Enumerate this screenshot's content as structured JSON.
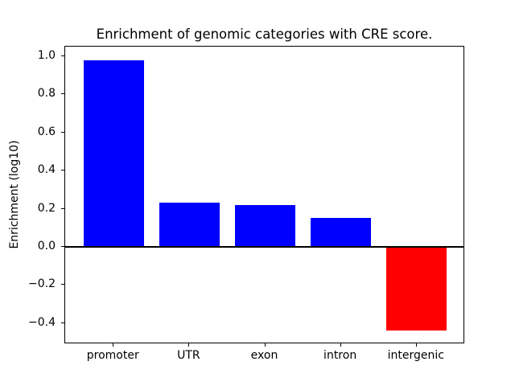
{
  "figure": {
    "background": "#ffffff",
    "title": "Enrichment of genomic categories with CRE score."
  },
  "chart_data": {
    "type": "bar",
    "title": "Enrichment of genomic categories with CRE score.",
    "xlabel": "",
    "ylabel": "Enrichment (log10)",
    "categories": [
      "promoter",
      "UTR",
      "exon",
      "intron",
      "intergenic"
    ],
    "values": [
      0.98,
      0.23,
      0.22,
      0.15,
      -0.44
    ],
    "bar_colors": [
      "#0000ff",
      "#0000ff",
      "#0000ff",
      "#0000ff",
      "#ff0000"
    ],
    "positive_color": "#0000ff",
    "negative_color": "#ff0000",
    "bar_width": 0.8,
    "xlim": [
      -0.64,
      4.64
    ],
    "ylim": [
      -0.511,
      1.051
    ],
    "yticks": [
      1.0,
      0.8,
      0.6,
      0.4,
      0.2,
      0.0,
      -0.2,
      -0.4
    ],
    "ytick_labels": [
      "1.0",
      "0.8",
      "0.6",
      "0.4",
      "0.2",
      "0.0",
      "−0.2",
      "−0.4"
    ],
    "zero_line": true,
    "grid": false,
    "legend": null,
    "frame": "box"
  }
}
